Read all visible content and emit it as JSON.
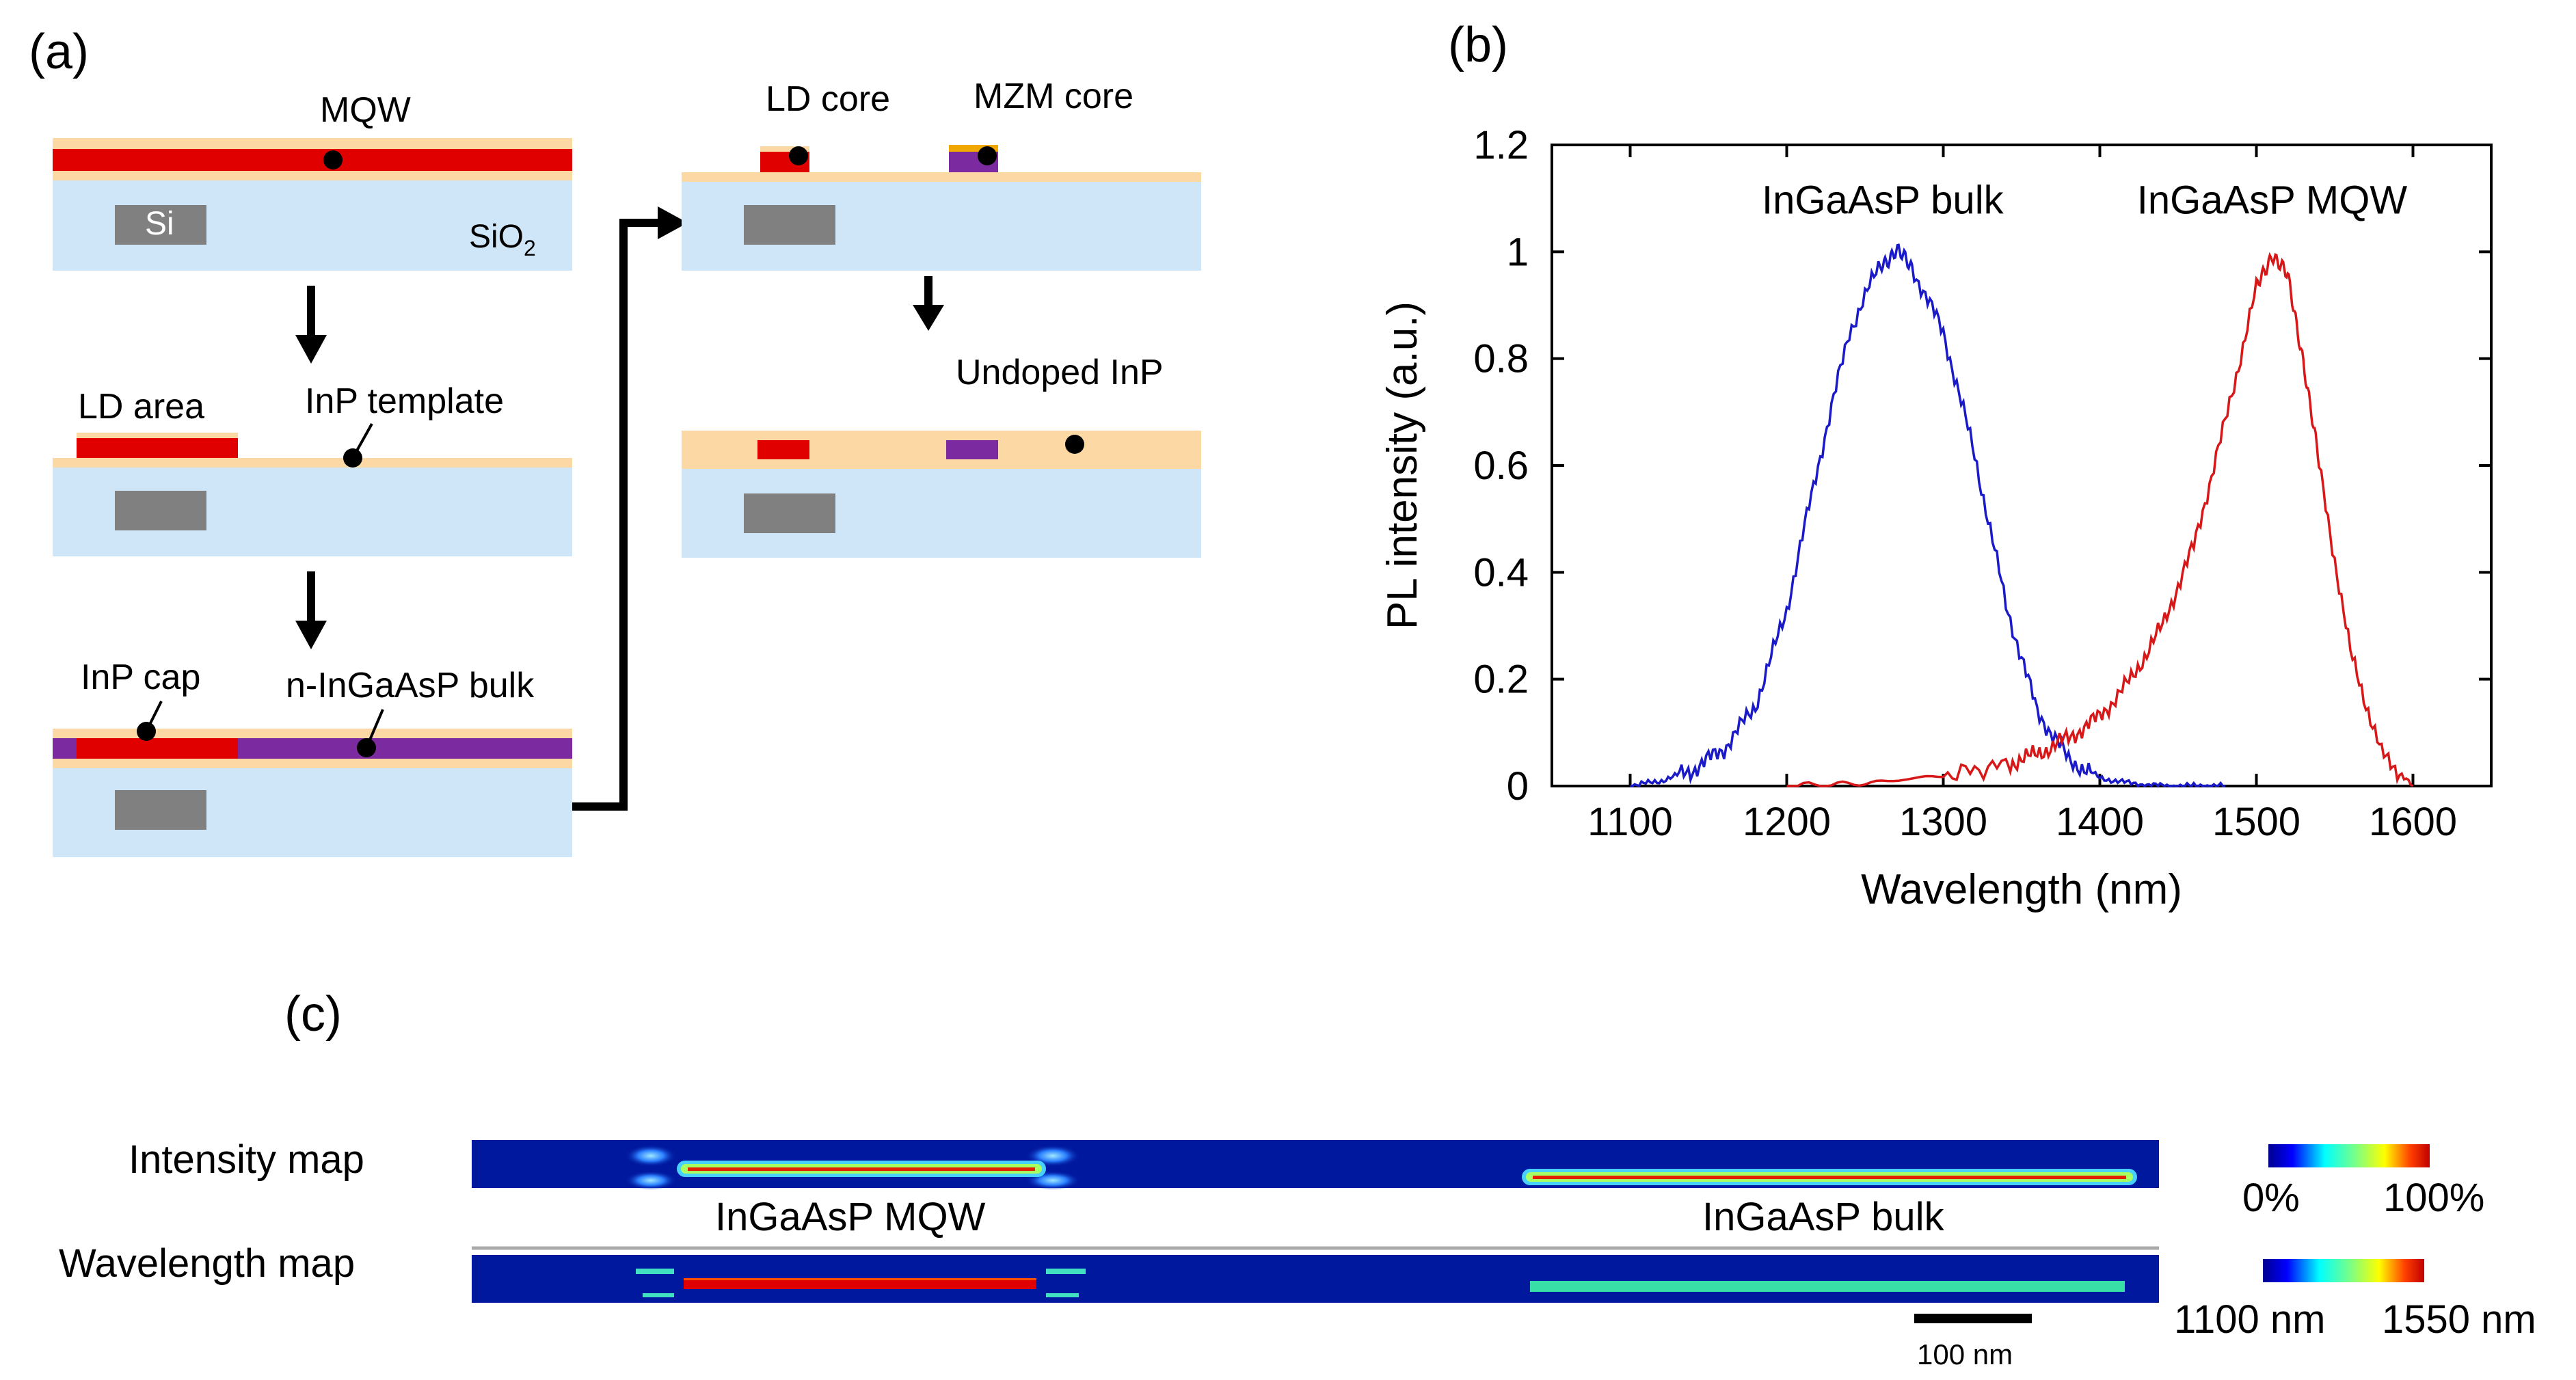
{
  "panel_a": {
    "label": "(a)",
    "step1": {
      "mqw": "MQW",
      "si": "Si",
      "sio2_base": "SiO",
      "sio2_sub": "2"
    },
    "step2": {
      "ld_area": "LD area",
      "inp_template": "InP template"
    },
    "step3": {
      "inp_cap": "InP cap",
      "bulk": "n-InGaAsP bulk"
    },
    "step4": {
      "ld_core": "LD core",
      "mzm_core": "MZM core"
    },
    "step5": {
      "undoped": "Undoped InP"
    },
    "colors": {
      "sio2": "#cfe5f8",
      "inp": "#fcd8a4",
      "mqw": "#e00000",
      "bulk": "#7c2a9f",
      "si": "#808080",
      "mzm_top": "#f0a800"
    }
  },
  "panel_b": {
    "label": "(b)"
  },
  "panel_c": {
    "label": "(c)",
    "intensity_label": "Intensity map",
    "wavelength_label": "Wavelength map",
    "mqw_label": "InGaAsP MQW",
    "bulk_label": "InGaAsP bulk",
    "intensity_scale": {
      "min": "0%",
      "max": "100%"
    },
    "wavelength_scale": {
      "min": "1100 nm",
      "max": "1550 nm"
    },
    "scalebar": "100 nm"
  },
  "chart_data": {
    "type": "line",
    "xlabel": "Wavelength (nm)",
    "ylabel": "PL intensity (a.u.)",
    "xlim": [
      1050,
      1650
    ],
    "ylim": [
      0,
      1.2
    ],
    "xticks": [
      "1100",
      "1200",
      "1300",
      "1400",
      "1500",
      "1600"
    ],
    "yticks": [
      "0",
      "0.2",
      "0.4",
      "0.6",
      "0.8",
      "1",
      "1.2"
    ],
    "series": [
      {
        "name": "InGaAsP bulk",
        "color": "#1a1ac8",
        "x": [
          1100,
          1120,
          1140,
          1160,
          1180,
          1200,
          1220,
          1240,
          1260,
          1270,
          1280,
          1300,
          1320,
          1340,
          1360,
          1380,
          1400,
          1420,
          1440,
          1460,
          1480
        ],
        "y": [
          0.0,
          0.01,
          0.03,
          0.07,
          0.15,
          0.33,
          0.6,
          0.85,
          0.98,
          1.0,
          0.97,
          0.85,
          0.62,
          0.34,
          0.14,
          0.05,
          0.015,
          0.005,
          0.0,
          0.0,
          0.0
        ]
      },
      {
        "name": "InGaAsP MQW",
        "color": "#d81818",
        "x": [
          1200,
          1250,
          1300,
          1340,
          1360,
          1380,
          1400,
          1420,
          1440,
          1460,
          1480,
          1500,
          1510,
          1520,
          1530,
          1540,
          1560,
          1580,
          1600
        ],
        "y": [
          0.0,
          0.005,
          0.02,
          0.04,
          0.06,
          0.09,
          0.13,
          0.2,
          0.3,
          0.45,
          0.68,
          0.93,
          1.0,
          0.95,
          0.8,
          0.6,
          0.25,
          0.06,
          0.0
        ]
      }
    ]
  }
}
